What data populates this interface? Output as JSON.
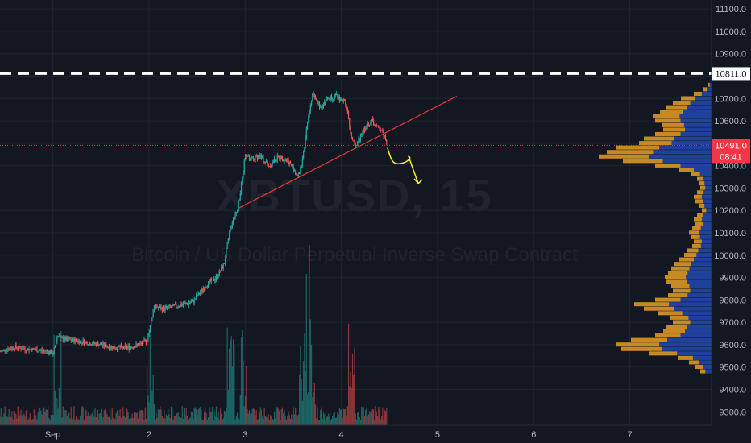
{
  "chart_data": {
    "type": "candlestick",
    "watermark": {
      "symbol": "XBTUSD, 15",
      "description": "Bitcoin / US Dollar Perpetual Inverse Swap Contract"
    },
    "y_axis": {
      "range": [
        9240,
        11140
      ],
      "ticks": [
        "11100.0",
        "11000.0",
        "10900.0",
        "10800.0",
        "10700.0",
        "10600.0",
        "10500.0",
        "10400.0",
        "10300.0",
        "10200.0",
        "10100.0",
        "10000.0",
        "9900.0",
        "9800.0",
        "9700.0",
        "9600.0",
        "9500.0",
        "9400.0",
        "9300.0"
      ]
    },
    "x_axis": {
      "ticks": [
        {
          "label": "Sep",
          "day": 1.0
        },
        {
          "label": "2",
          "day": 2.0
        },
        {
          "label": "3",
          "day": 3.0
        },
        {
          "label": "4",
          "day": 4.0
        },
        {
          "label": "5",
          "day": 5.0
        },
        {
          "label": "6",
          "day": 6.0
        },
        {
          "label": "7",
          "day": 7.0
        }
      ],
      "range_days": [
        0.45,
        7.85
      ]
    },
    "price_path": [
      [
        0.45,
        9570
      ],
      [
        0.6,
        9590
      ],
      [
        0.75,
        9580
      ],
      [
        0.85,
        9575
      ],
      [
        0.95,
        9570
      ],
      [
        1.0,
        9560
      ],
      [
        1.05,
        9640
      ],
      [
        1.1,
        9625
      ],
      [
        1.3,
        9615
      ],
      [
        1.5,
        9600
      ],
      [
        1.6,
        9590
      ],
      [
        1.75,
        9585
      ],
      [
        1.9,
        9600
      ],
      [
        1.98,
        9620
      ],
      [
        2.02,
        9700
      ],
      [
        2.05,
        9770
      ],
      [
        2.15,
        9760
      ],
      [
        2.3,
        9775
      ],
      [
        2.45,
        9790
      ],
      [
        2.6,
        9870
      ],
      [
        2.7,
        9900
      ],
      [
        2.78,
        9960
      ],
      [
        2.85,
        10130
      ],
      [
        2.92,
        10210
      ],
      [
        2.98,
        10360
      ],
      [
        3.0,
        10460
      ],
      [
        3.05,
        10420
      ],
      [
        3.15,
        10445
      ],
      [
        3.25,
        10400
      ],
      [
        3.35,
        10440
      ],
      [
        3.45,
        10420
      ],
      [
        3.55,
        10350
      ],
      [
        3.6,
        10430
      ],
      [
        3.65,
        10600
      ],
      [
        3.7,
        10720
      ],
      [
        3.78,
        10660
      ],
      [
        3.85,
        10700
      ],
      [
        3.95,
        10710
      ],
      [
        4.05,
        10680
      ],
      [
        4.1,
        10530
      ],
      [
        4.15,
        10480
      ],
      [
        4.2,
        10540
      ],
      [
        4.25,
        10570
      ],
      [
        4.32,
        10600
      ],
      [
        4.37,
        10570
      ],
      [
        4.42,
        10560
      ],
      [
        4.45,
        10530
      ],
      [
        4.48,
        10491
      ]
    ],
    "horizontal_lines": [
      {
        "label": "10811.0",
        "price": 10811.0,
        "style": "dashed",
        "color": "#ffffff"
      },
      {
        "label": "10491.0",
        "price": 10491.0,
        "style": "dotted",
        "color": "#f23645"
      }
    ],
    "countdown": "08:41",
    "trendline": {
      "from": [
        2.93,
        10210
      ],
      "to": [
        5.2,
        10710
      ],
      "color": "#e53935"
    },
    "projection": {
      "color": "#ffeb3b",
      "points": [
        [
          4.48,
          10480
        ],
        [
          4.52,
          10420
        ],
        [
          4.62,
          10410
        ],
        [
          4.7,
          10440
        ],
        [
          4.8,
          10320
        ]
      ]
    },
    "colors": {
      "up": "#26a69a",
      "down": "#ef5350",
      "bg": "#131722",
      "profile_blue": "#2962ff",
      "profile_orange": "#f5a623"
    },
    "volume_profile": {
      "levels": [
        [
          10760,
          4
        ],
        [
          10740,
          10
        ],
        [
          10720,
          22
        ],
        [
          10700,
          38
        ],
        [
          10680,
          48
        ],
        [
          10660,
          56
        ],
        [
          10640,
          64
        ],
        [
          10620,
          72
        ],
        [
          10600,
          70
        ],
        [
          10580,
          62
        ],
        [
          10560,
          60
        ],
        [
          10540,
          70
        ],
        [
          10520,
          84
        ],
        [
          10500,
          90
        ],
        [
          10480,
          118
        ],
        [
          10460,
          130
        ],
        [
          10440,
          140
        ],
        [
          10420,
          110
        ],
        [
          10400,
          70
        ],
        [
          10380,
          40
        ],
        [
          10360,
          26
        ],
        [
          10340,
          18
        ],
        [
          10320,
          16
        ],
        [
          10300,
          14
        ],
        [
          10280,
          18
        ],
        [
          10260,
          22
        ],
        [
          10240,
          20
        ],
        [
          10220,
          16
        ],
        [
          10200,
          12
        ],
        [
          10180,
          18
        ],
        [
          10160,
          22
        ],
        [
          10140,
          20
        ],
        [
          10120,
          24
        ],
        [
          10100,
          28
        ],
        [
          10080,
          26
        ],
        [
          10060,
          22
        ],
        [
          10040,
          24
        ],
        [
          10020,
          30
        ],
        [
          10000,
          34
        ],
        [
          9980,
          40
        ],
        [
          9960,
          46
        ],
        [
          9940,
          50
        ],
        [
          9920,
          54
        ],
        [
          9900,
          58
        ],
        [
          9880,
          56
        ],
        [
          9860,
          50
        ],
        [
          9840,
          48
        ],
        [
          9820,
          54
        ],
        [
          9800,
          70
        ],
        [
          9780,
          96
        ],
        [
          9760,
          84
        ],
        [
          9740,
          66
        ],
        [
          9720,
          52
        ],
        [
          9700,
          48
        ],
        [
          9680,
          56
        ],
        [
          9660,
          60
        ],
        [
          9640,
          70
        ],
        [
          9620,
          100
        ],
        [
          9600,
          118
        ],
        [
          9580,
          112
        ],
        [
          9560,
          78
        ],
        [
          9540,
          42
        ],
        [
          9520,
          28
        ],
        [
          9500,
          20
        ],
        [
          9480,
          14
        ]
      ]
    }
  }
}
